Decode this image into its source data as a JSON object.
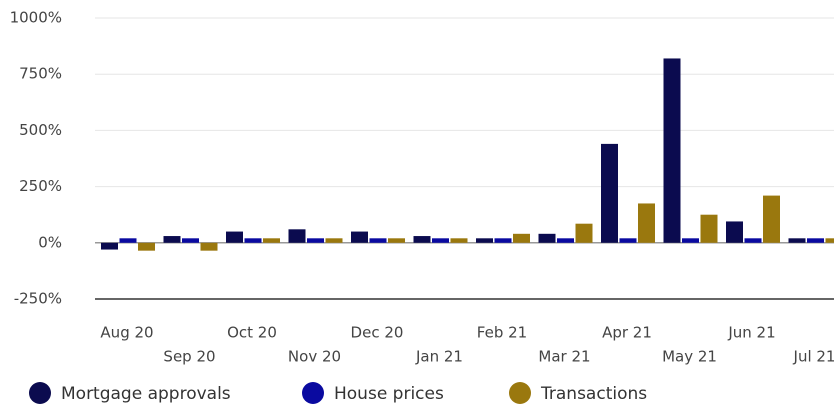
{
  "chart_data": {
    "type": "bar",
    "categories": [
      "Aug 20",
      "Sep 20",
      "Oct 20",
      "Nov 20",
      "Dec 20",
      "Jan 21",
      "Feb 21",
      "Mar 21",
      "Apr 21",
      "May 21",
      "Jun 21",
      "Jul 21"
    ],
    "series": [
      {
        "name": "Mortgage approvals",
        "color": "#0b0b4f",
        "values": [
          -30,
          30,
          50,
          60,
          50,
          30,
          20,
          40,
          440,
          820,
          95,
          20
        ]
      },
      {
        "name": "House prices",
        "color": "#0a0aa0",
        "values": [
          20,
          20,
          20,
          20,
          20,
          20,
          20,
          20,
          20,
          20,
          20,
          20
        ]
      },
      {
        "name": "Transactions",
        "color": "#9a780e",
        "values": [
          -35,
          -35,
          20,
          20,
          20,
          20,
          40,
          85,
          175,
          125,
          210,
          20
        ]
      }
    ],
    "ylim": [
      -250,
      1000
    ],
    "yticks": [
      {
        "value": -250,
        "label": "-250%"
      },
      {
        "value": 0,
        "label": "0%"
      },
      {
        "value": 250,
        "label": "250%"
      },
      {
        "value": 500,
        "label": "500%"
      },
      {
        "value": 750,
        "label": "750%"
      },
      {
        "value": 1000,
        "label": "1000%"
      }
    ],
    "grid": true
  }
}
